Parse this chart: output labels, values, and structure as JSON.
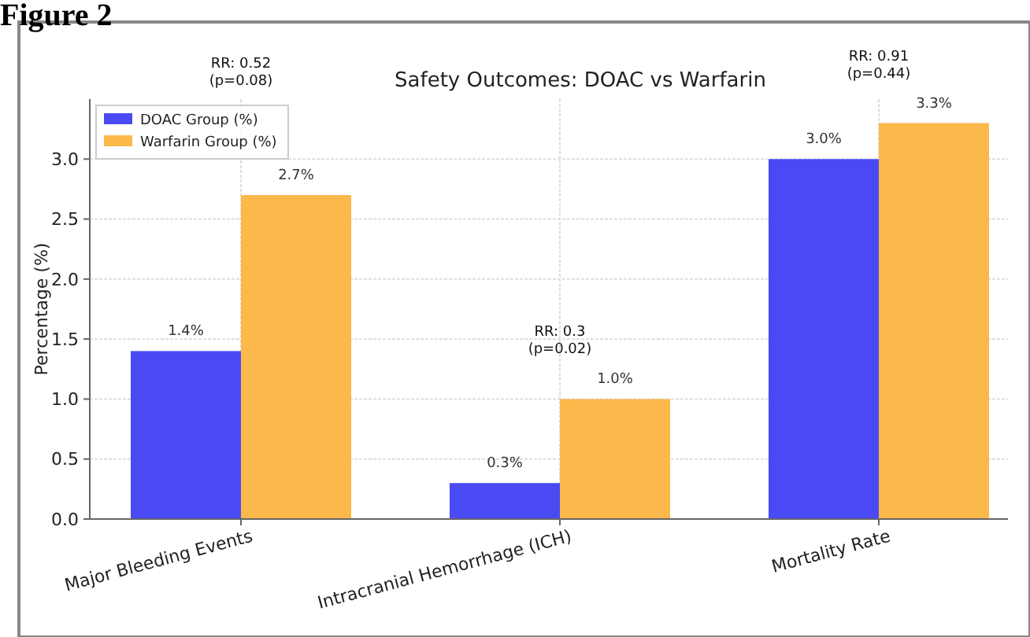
{
  "chart_data": {
    "type": "bar",
    "title": "Safety Outcomes: DOAC vs Warfarin",
    "ylabel": "Percentage (%)",
    "categories": [
      "Major Bleeding Events",
      "Intracranial Hemorrhage (ICH)",
      "Mortality Rate"
    ],
    "series": [
      {
        "name": "DOAC Group (%)",
        "color": "#4a4af4",
        "values": [
          1.4,
          0.3,
          3.0
        ],
        "value_labels": [
          "1.4%",
          "0.3%",
          "3.0%"
        ]
      },
      {
        "name": "Warfarin Group (%)",
        "color": "#fbb84b",
        "values": [
          2.7,
          1.0,
          3.3
        ],
        "value_labels": [
          "2.7%",
          "1.0%",
          "3.3%"
        ]
      }
    ],
    "ylim": [
      0,
      3.5
    ],
    "yticks": [
      {
        "value": 0,
        "label": "0.0"
      },
      {
        "value": 0.5,
        "label": "0.5"
      },
      {
        "value": 1,
        "label": "1.0"
      },
      {
        "value": 1.5,
        "label": "1.5"
      },
      {
        "value": 2,
        "label": "2.0"
      },
      {
        "value": 2.5,
        "label": "2.5"
      },
      {
        "value": 3,
        "label": "3.0"
      }
    ],
    "grid": true,
    "legend": "top left",
    "annotations": [
      "Figure 2",
      "RR: 0.52\n(p=0.08)",
      "RR: 0.3\n(p=0.02)",
      "RR: 0.91\n(p=0.44)"
    ]
  }
}
